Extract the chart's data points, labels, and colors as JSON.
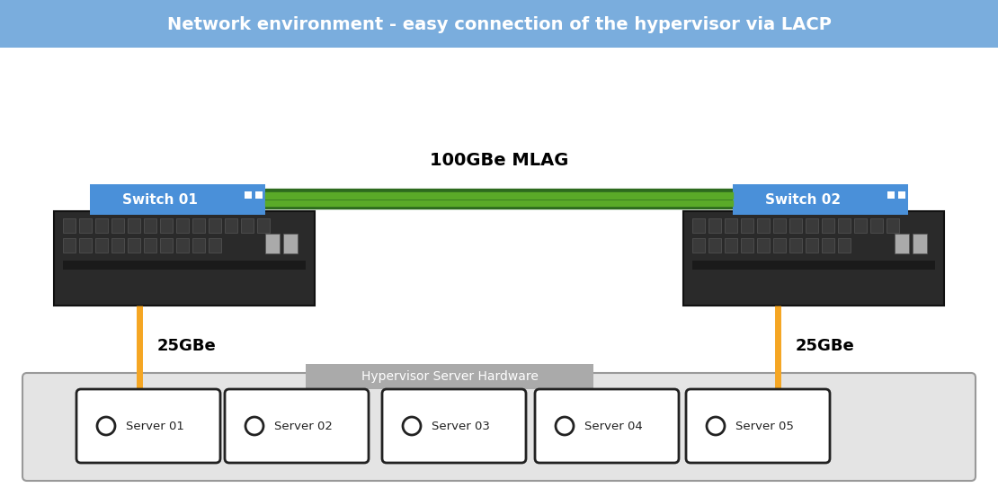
{
  "title": "Network environment - easy connection of the hypervisor via LACP",
  "title_bg": "#7aaddd",
  "title_text_color": "#ffffff",
  "bg_color": "#ffffff",
  "mlag_label": "100GBe MLAG",
  "mlag_color_dark": "#2d6a1e",
  "mlag_color_light": "#5aaa28",
  "switch1_label": "Switch 01",
  "switch2_label": "Switch 02",
  "switch_bg": "#4a90d9",
  "switch_text_color": "#ffffff",
  "speed_label": "25GBe",
  "cable_color": "#f5a623",
  "hypervisor_label": "Hypervisor Server Hardware",
  "hypervisor_bg": "#aaaaaa",
  "servers": [
    "Server 01",
    "Server 02",
    "Server 03",
    "Server 04",
    "Server 05"
  ],
  "server_border": "#222222",
  "bottom_panel_bg": "#e4e4e4",
  "switch_body_color": "#2a2a2a",
  "switch_port_color": "#3a3a3a",
  "switch_port_edge": "#555555",
  "rj45_color": "#aaaaaa"
}
